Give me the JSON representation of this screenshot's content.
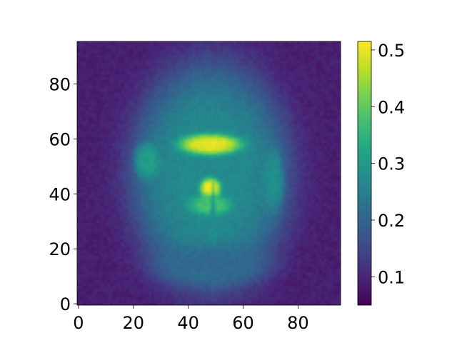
{
  "chart_data": {
    "type": "heatmap",
    "title": "",
    "xlabel": "",
    "ylabel": "",
    "xlim": [
      -0.5,
      95.5
    ],
    "ylim": [
      -0.5,
      95.5
    ],
    "origin": "lower",
    "grid": false,
    "colormap": "viridis",
    "x_ticks": [
      0,
      20,
      40,
      60,
      80
    ],
    "x_tick_labels": [
      "0",
      "20",
      "40",
      "60",
      "80"
    ],
    "y_ticks": [
      0,
      20,
      40,
      60,
      80
    ],
    "y_tick_labels": [
      "0",
      "20",
      "40",
      "60",
      "80"
    ],
    "colorbar": {
      "range": [
        0.05,
        0.515
      ],
      "ticks": [
        0.1,
        0.2,
        0.3,
        0.4,
        0.5
      ],
      "tick_labels": [
        "0.1",
        "0.2",
        "0.3",
        "0.4",
        "0.5"
      ]
    },
    "grid_size": [
      96,
      96
    ],
    "background_value": 0.09,
    "features": [
      {
        "name": "head outer region",
        "center": [
          48,
          47
        ],
        "radius": [
          30,
          42
        ],
        "value": 0.19
      },
      {
        "name": "cortex rim",
        "center": [
          48,
          47
        ],
        "radius": [
          28,
          40
        ],
        "value": 0.27
      },
      {
        "name": "left temporal lobe",
        "center": [
          25,
          52
        ],
        "radius": [
          5,
          7
        ],
        "value": 0.31
      },
      {
        "name": "right temporal lobe",
        "center": [
          71,
          45
        ],
        "radius": [
          4,
          12
        ],
        "value": 0.28
      },
      {
        "name": "ventricles upper",
        "center": [
          48,
          58
        ],
        "radius": [
          12,
          4
        ],
        "value": 0.5
      },
      {
        "name": "central structure",
        "center": [
          48,
          42
        ],
        "radius": [
          4,
          4
        ],
        "value": 0.51
      },
      {
        "name": "lower ventricle arms",
        "center": [
          48,
          36
        ],
        "radius": [
          8,
          4
        ],
        "value": 0.38
      },
      {
        "name": "central fissure",
        "center": [
          49,
          25
        ],
        "radius": [
          1.2,
          18
        ],
        "value": 0.28
      },
      {
        "name": "cerebellum base",
        "center": [
          48,
          14
        ],
        "radius": [
          22,
          8
        ],
        "value": 0.21
      }
    ]
  }
}
